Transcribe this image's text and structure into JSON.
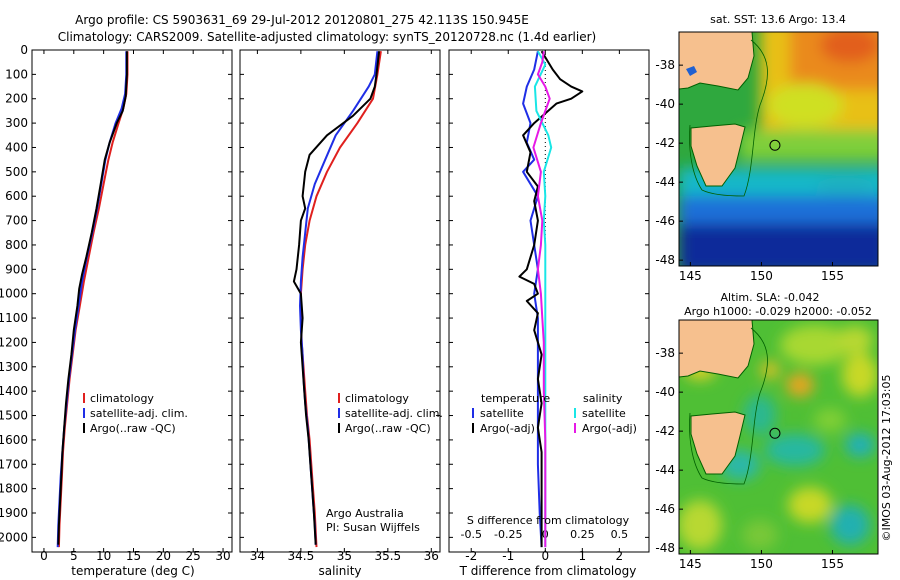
{
  "header": {
    "line1": "Argo profile: CS 5903631_69 29-Jul-2012 20120801_275 42.113S 150.945E",
    "line2": "Climatology: CARS2009. Satellite-adjusted climatology: synTS_20120728.nc (1.4d earlier)"
  },
  "side_stamp": "©IMOS 03-Aug-2012 17:03:05",
  "colors": {
    "climatology": "#e0201e",
    "satellite": "#1f2ee6",
    "argo": "#000000",
    "sal_satellite": "#19e6e6",
    "sal_argo": "#e619e6",
    "land": "#f6c08e",
    "coast": "#006000"
  },
  "chart_data": [
    {
      "type": "line",
      "name": "temperature-profile",
      "xlabel": "temperature (deg C)",
      "xticks": [
        "0",
        "5",
        "10",
        "15",
        "20",
        "25",
        "30"
      ],
      "xlim": [
        -2,
        31.5
      ],
      "ylim": [
        0,
        2060
      ],
      "y_inverted": true,
      "yticks": [
        "0",
        "100",
        "200",
        "300",
        "400",
        "500",
        "600",
        "700",
        "800",
        "900",
        "1000",
        "1100",
        "1200",
        "1300",
        "1400",
        "1500",
        "1600",
        "1700",
        "1800",
        "1900",
        "2000"
      ],
      "legend": [
        "climatology",
        "satellite-adj. clim.",
        "Argo(..raw -QC)"
      ],
      "legend_position": "lower-right",
      "series": [
        {
          "name": "climatology",
          "color_key": "climatology",
          "points": [
            [
              14.0,
              5
            ],
            [
              14.0,
              100
            ],
            [
              13.8,
              180
            ],
            [
              13.3,
              240
            ],
            [
              12.5,
              300
            ],
            [
              11.5,
              380
            ],
            [
              10.8,
              450
            ],
            [
              10.0,
              550
            ],
            [
              9.2,
              650
            ],
            [
              8.3,
              750
            ],
            [
              7.5,
              850
            ],
            [
              6.7,
              950
            ],
            [
              6.0,
              1050
            ],
            [
              5.3,
              1150
            ],
            [
              4.8,
              1250
            ],
            [
              4.3,
              1350
            ],
            [
              3.9,
              1450
            ],
            [
              3.5,
              1550
            ],
            [
              3.2,
              1650
            ],
            [
              3.0,
              1750
            ],
            [
              2.8,
              1850
            ],
            [
              2.6,
              1950
            ],
            [
              2.5,
              2040
            ]
          ]
        },
        {
          "name": "satellite-adj. clim.",
          "color_key": "satellite",
          "points": [
            [
              13.8,
              5
            ],
            [
              13.8,
              100
            ],
            [
              13.6,
              180
            ],
            [
              13.0,
              240
            ],
            [
              12.0,
              300
            ],
            [
              11.0,
              380
            ],
            [
              10.3,
              450
            ],
            [
              9.6,
              550
            ],
            [
              8.9,
              650
            ],
            [
              8.1,
              750
            ],
            [
              7.2,
              850
            ],
            [
              6.4,
              950
            ],
            [
              5.8,
              1050
            ],
            [
              5.2,
              1150
            ],
            [
              4.7,
              1250
            ],
            [
              4.2,
              1350
            ],
            [
              3.8,
              1450
            ],
            [
              3.4,
              1550
            ],
            [
              3.1,
              1650
            ],
            [
              2.8,
              1750
            ],
            [
              2.6,
              1850
            ],
            [
              2.4,
              1950
            ],
            [
              2.3,
              2040
            ]
          ]
        },
        {
          "name": "Argo(..raw -QC)",
          "color_key": "argo",
          "points": [
            [
              13.9,
              5
            ],
            [
              13.9,
              100
            ],
            [
              13.7,
              190
            ],
            [
              13.2,
              250
            ],
            [
              12.2,
              300
            ],
            [
              11.0,
              380
            ],
            [
              10.2,
              450
            ],
            [
              9.5,
              550
            ],
            [
              8.8,
              650
            ],
            [
              8.0,
              750
            ],
            [
              7.1,
              850
            ],
            [
              6.4,
              920
            ],
            [
              5.9,
              980
            ],
            [
              5.6,
              1050
            ],
            [
              5.0,
              1150
            ],
            [
              4.6,
              1250
            ],
            [
              4.1,
              1350
            ],
            [
              3.7,
              1450
            ],
            [
              3.4,
              1550
            ],
            [
              3.1,
              1650
            ],
            [
              2.9,
              1750
            ],
            [
              2.7,
              1850
            ],
            [
              2.5,
              1950
            ],
            [
              2.4,
              2030
            ]
          ]
        }
      ]
    },
    {
      "type": "line",
      "name": "salinity-profile",
      "xlabel": "salinity",
      "xticks": [
        "34",
        "34.5",
        "35",
        "35.5",
        "36"
      ],
      "xlim": [
        33.8,
        36.1
      ],
      "ylim": [
        0,
        2060
      ],
      "y_inverted": true,
      "legend": [
        "climatology",
        "satellite-adj. clim.",
        "Argo(..raw -QC)"
      ],
      "legend_position": "lower-right",
      "credits": [
        "Argo Australia",
        "PI: Susan Wijffels"
      ],
      "series": [
        {
          "name": "climatology",
          "color_key": "climatology",
          "points": [
            [
              35.42,
              5
            ],
            [
              35.38,
              100
            ],
            [
              35.33,
              200
            ],
            [
              35.15,
              300
            ],
            [
              34.95,
              400
            ],
            [
              34.8,
              500
            ],
            [
              34.68,
              600
            ],
            [
              34.6,
              700
            ],
            [
              34.55,
              800
            ],
            [
              34.52,
              900
            ],
            [
              34.5,
              1000
            ],
            [
              34.5,
              1100
            ],
            [
              34.51,
              1200
            ],
            [
              34.53,
              1300
            ],
            [
              34.55,
              1400
            ],
            [
              34.57,
              1500
            ],
            [
              34.6,
              1600
            ],
            [
              34.62,
              1700
            ],
            [
              34.64,
              1800
            ],
            [
              34.66,
              1900
            ],
            [
              34.68,
              2040
            ]
          ]
        },
        {
          "name": "satellite-adj. clim.",
          "color_key": "satellite",
          "points": [
            [
              35.38,
              5
            ],
            [
              35.35,
              100
            ],
            [
              35.28,
              150
            ],
            [
              35.1,
              250
            ],
            [
              34.9,
              350
            ],
            [
              34.78,
              450
            ],
            [
              34.66,
              550
            ],
            [
              34.58,
              650
            ],
            [
              34.55,
              750
            ],
            [
              34.52,
              850
            ],
            [
              34.5,
              950
            ],
            [
              34.49,
              1050
            ],
            [
              34.5,
              1150
            ],
            [
              34.52,
              1250
            ],
            [
              34.53,
              1350
            ],
            [
              34.55,
              1450
            ],
            [
              34.58,
              1550
            ],
            [
              34.6,
              1650
            ],
            [
              34.62,
              1750
            ],
            [
              34.64,
              1850
            ],
            [
              34.66,
              1950
            ],
            [
              34.67,
              2030
            ]
          ]
        },
        {
          "name": "Argo(..raw -QC)",
          "color_key": "argo",
          "points": [
            [
              35.4,
              5
            ],
            [
              35.37,
              100
            ],
            [
              35.35,
              150
            ],
            [
              35.3,
              200
            ],
            [
              35.1,
              270
            ],
            [
              34.8,
              350
            ],
            [
              34.6,
              430
            ],
            [
              34.55,
              500
            ],
            [
              34.52,
              600
            ],
            [
              34.55,
              650
            ],
            [
              34.5,
              700
            ],
            [
              34.48,
              800
            ],
            [
              34.45,
              900
            ],
            [
              34.42,
              950
            ],
            [
              34.5,
              1000
            ],
            [
              34.52,
              1100
            ],
            [
              34.5,
              1200
            ],
            [
              34.52,
              1300
            ],
            [
              34.54,
              1400
            ],
            [
              34.56,
              1500
            ],
            [
              34.59,
              1600
            ],
            [
              34.61,
              1700
            ],
            [
              34.63,
              1800
            ],
            [
              34.65,
              1900
            ],
            [
              34.67,
              2030
            ]
          ]
        }
      ]
    },
    {
      "type": "line",
      "name": "difference-profile",
      "xlabel": "T difference from climatology",
      "xlabel_top": "S difference from climatology",
      "xticks": [
        "-2",
        "-1",
        "0",
        "1",
        "2"
      ],
      "xlim": [
        -2.6,
        2.8
      ],
      "xticks_s": [
        "-0.5",
        "-0.25",
        "0",
        "0.25",
        "0.5"
      ],
      "xlim_s": [
        -0.65,
        0.7
      ],
      "ylim": [
        0,
        2060
      ],
      "y_inverted": true,
      "legend_temperature": {
        "title": "temperature",
        "items": [
          "satellite",
          "Argo(-adj)"
        ]
      },
      "legend_salinity": {
        "title": "salinity",
        "items": [
          "satellite",
          "Argo(-adj)"
        ]
      },
      "series": [
        {
          "name": "T satellite",
          "color_key": "satellite",
          "points": [
            [
              -0.2,
              5
            ],
            [
              -0.3,
              80
            ],
            [
              -0.5,
              150
            ],
            [
              -0.6,
              220
            ],
            [
              -0.4,
              300
            ],
            [
              -0.5,
              380
            ],
            [
              -0.3,
              450
            ],
            [
              -0.6,
              500
            ],
            [
              -0.2,
              600
            ],
            [
              -0.4,
              700
            ],
            [
              -0.3,
              800
            ],
            [
              -0.2,
              900
            ],
            [
              -0.3,
              1000
            ],
            [
              -0.2,
              1100
            ],
            [
              -0.2,
              1300
            ],
            [
              -0.2,
              1500
            ],
            [
              -0.2,
              1700
            ],
            [
              -0.15,
              1900
            ],
            [
              -0.1,
              2040
            ]
          ]
        },
        {
          "name": "T Argo",
          "color_key": "argo",
          "points": [
            [
              -0.1,
              5
            ],
            [
              0.2,
              80
            ],
            [
              0.4,
              120
            ],
            [
              0.7,
              150
            ],
            [
              1.0,
              170
            ],
            [
              0.7,
              200
            ],
            [
              0.3,
              220
            ],
            [
              -0.3,
              300
            ],
            [
              -0.6,
              350
            ],
            [
              -0.4,
              420
            ],
            [
              -0.5,
              500
            ],
            [
              -0.2,
              560
            ],
            [
              -0.3,
              620
            ],
            [
              -0.2,
              700
            ],
            [
              -0.3,
              800
            ],
            [
              -0.5,
              900
            ],
            [
              -0.7,
              930
            ],
            [
              -0.3,
              960
            ],
            [
              -0.2,
              1000
            ],
            [
              -0.5,
              1030
            ],
            [
              -0.2,
              1080
            ],
            [
              -0.3,
              1150
            ],
            [
              -0.1,
              1250
            ],
            [
              -0.2,
              1350
            ],
            [
              -0.1,
              1450
            ],
            [
              -0.2,
              1550
            ],
            [
              -0.1,
              1650
            ],
            [
              -0.1,
              1800
            ],
            [
              -0.1,
              2040
            ]
          ]
        },
        {
          "name": "S satellite",
          "color_key": "sal_satellite",
          "points": [
            [
              -0.05,
              5
            ],
            [
              0.0,
              60
            ],
            [
              -0.07,
              150
            ],
            [
              -0.06,
              250
            ],
            [
              0.02,
              350
            ],
            [
              0.04,
              400
            ],
            [
              -0.01,
              500
            ],
            [
              0.0,
              600
            ],
            [
              -0.01,
              700
            ],
            [
              0.0,
              800
            ],
            [
              0.0,
              1000
            ],
            [
              0.0,
              1200
            ],
            [
              0.0,
              1400
            ],
            [
              0.0,
              1600
            ],
            [
              0.0,
              1800
            ],
            [
              0.0,
              2040
            ]
          ]
        },
        {
          "name": "S Argo",
          "color_key": "sal_argo",
          "points": [
            [
              -0.01,
              5
            ],
            [
              -0.02,
              50
            ],
            [
              -0.05,
              100
            ],
            [
              0.0,
              150
            ],
            [
              0.03,
              200
            ],
            [
              -0.03,
              300
            ],
            [
              -0.08,
              400
            ],
            [
              -0.03,
              500
            ],
            [
              -0.05,
              600
            ],
            [
              -0.02,
              700
            ],
            [
              -0.03,
              800
            ],
            [
              -0.05,
              900
            ],
            [
              -0.03,
              1000
            ],
            [
              -0.02,
              1100
            ],
            [
              -0.01,
              1200
            ],
            [
              -0.01,
              1400
            ],
            [
              0.0,
              1600
            ],
            [
              0.0,
              1800
            ],
            [
              0.0,
              2040
            ]
          ]
        }
      ]
    },
    {
      "type": "heatmap",
      "name": "sst-map",
      "title": "sat. SST: 13.6 Argo: 13.4",
      "xticks": [
        "145",
        "150",
        "155"
      ],
      "yticks": [
        "-38",
        "-40",
        "-42",
        "-44",
        "-46",
        "-48"
      ],
      "xlim": [
        144.2,
        158.2
      ],
      "ylim": [
        -48.3,
        -36.3
      ],
      "marker": [
        150.95,
        -42.11
      ]
    },
    {
      "type": "heatmap",
      "name": "sla-map",
      "title": "Altim. SLA: -0.042",
      "subtitle": "Argo h1000: -0.029 h2000: -0.052",
      "xticks": [
        "145",
        "150",
        "155"
      ],
      "yticks": [
        "-38",
        "-40",
        "-42",
        "-44",
        "-46",
        "-48"
      ],
      "xlim": [
        144.2,
        158.2
      ],
      "ylim": [
        -48.3,
        -36.3
      ],
      "marker": [
        150.95,
        -42.11
      ]
    }
  ]
}
